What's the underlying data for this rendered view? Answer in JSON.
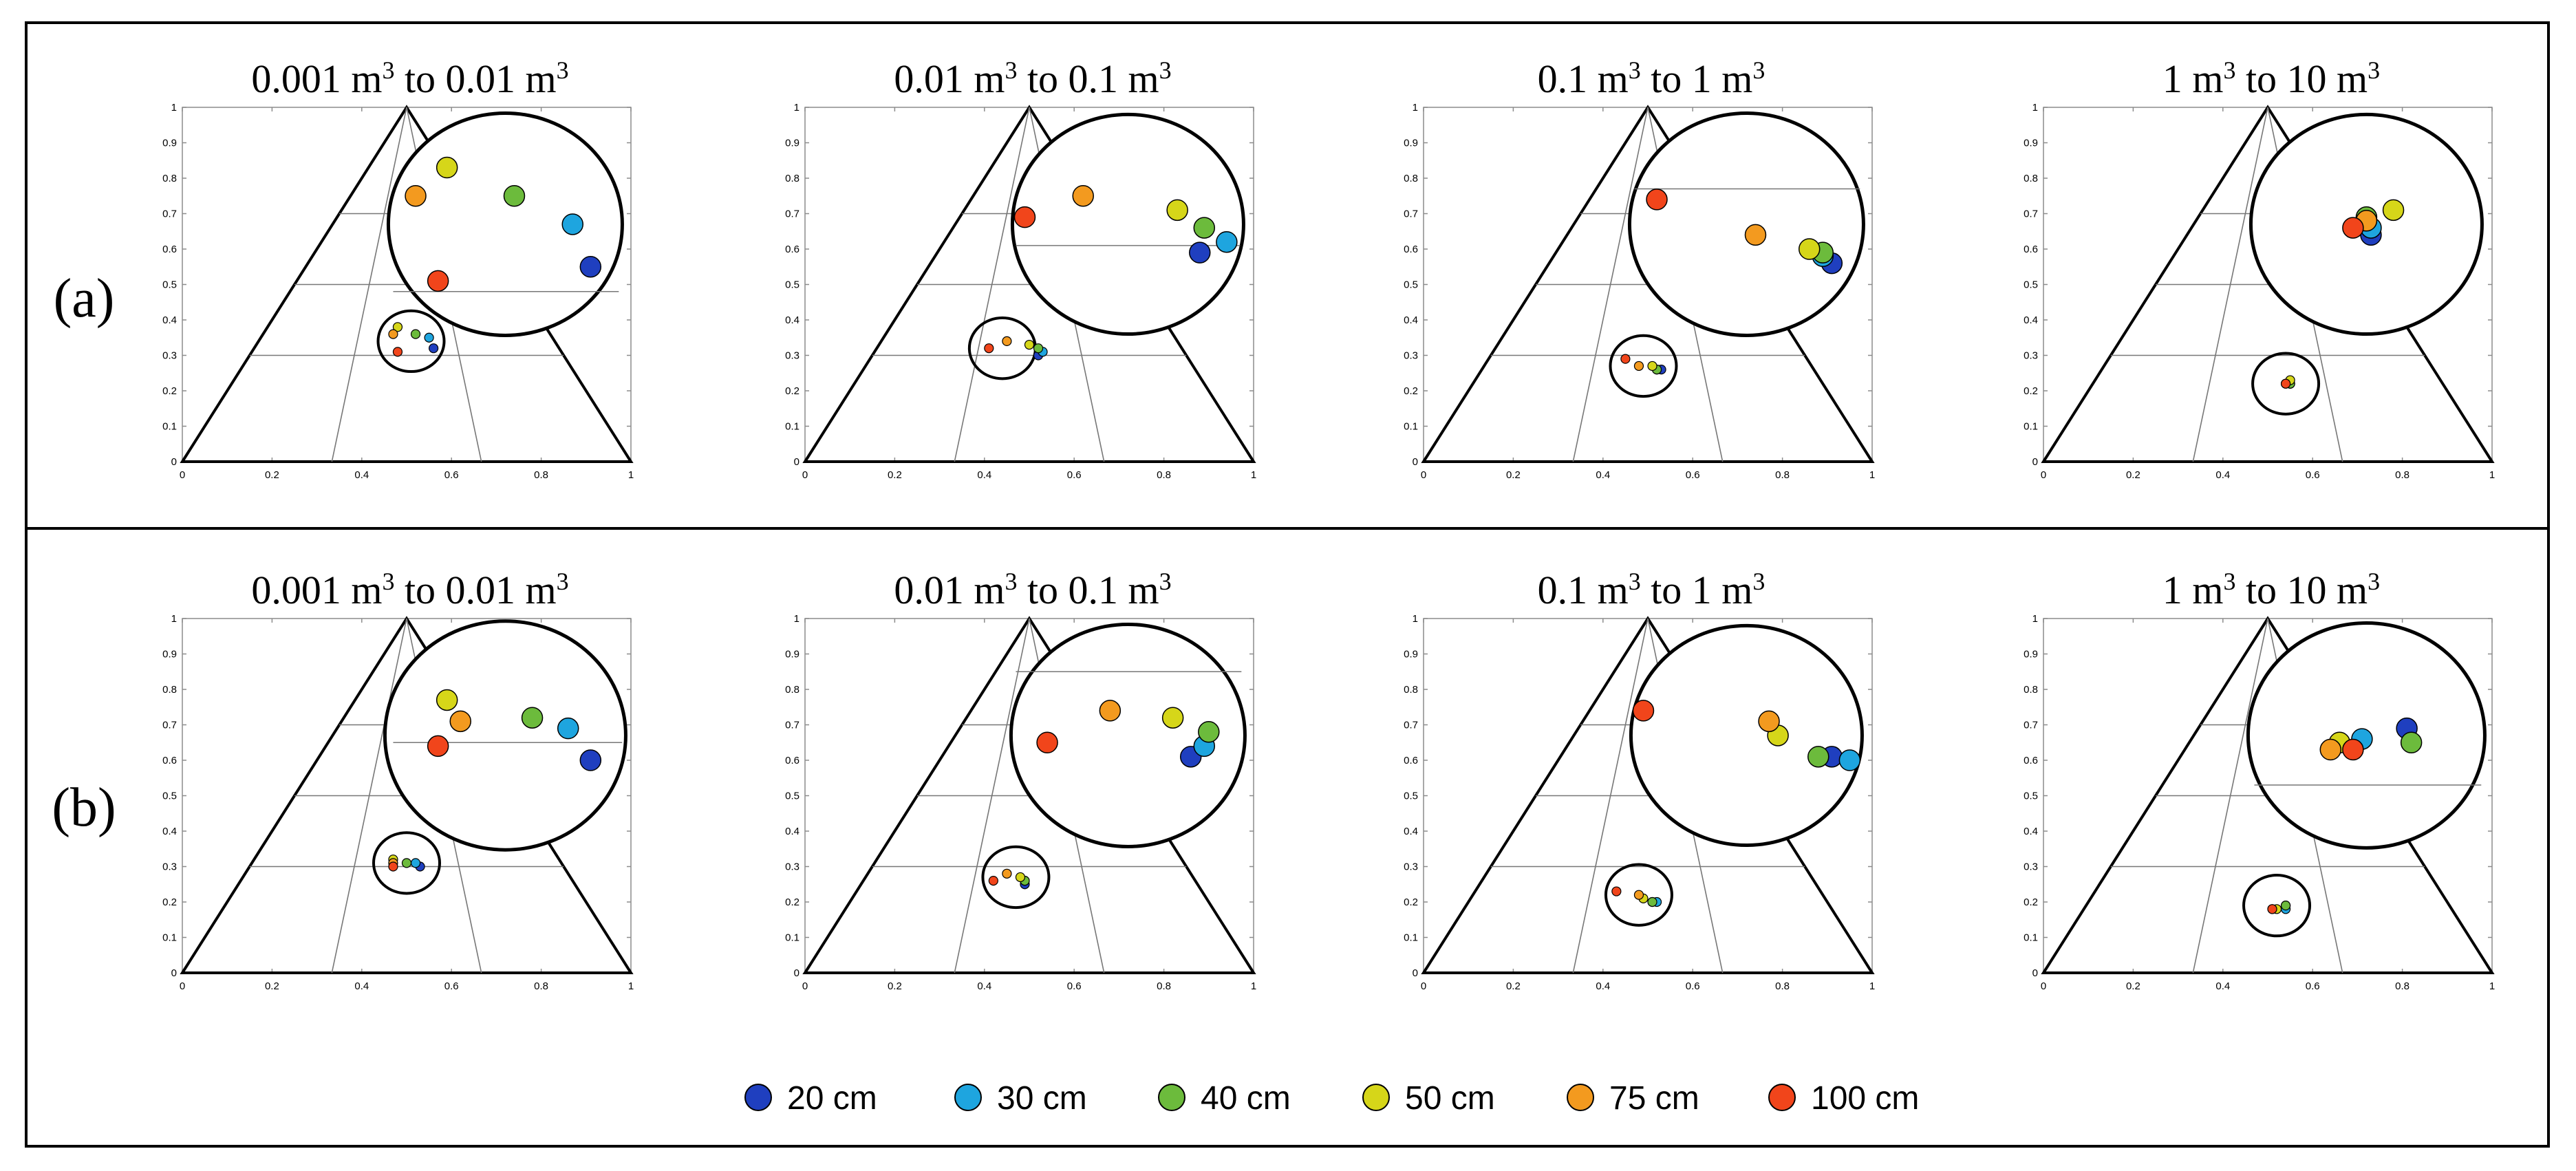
{
  "figure": {
    "rows": [
      {
        "label": "(a)"
      },
      {
        "label": "(b)"
      }
    ]
  },
  "colors": {
    "series": [
      "#1f3fbf",
      "#1ea5df",
      "#6cbb3c",
      "#d6d619",
      "#f39a1f",
      "#f1451b"
    ],
    "frame": "#000000",
    "axis": "#8c8c8c",
    "grid": "#777777"
  },
  "legend": {
    "items": [
      {
        "label": "20 cm",
        "color": "#1f3fbf"
      },
      {
        "label": "30 cm",
        "color": "#1ea5df"
      },
      {
        "label": "40 cm",
        "color": "#6cbb3c"
      },
      {
        "label": "50 cm",
        "color": "#d6d619"
      },
      {
        "label": "75 cm",
        "color": "#f39a1f"
      },
      {
        "label": "100 cm",
        "color": "#f1451b"
      }
    ]
  },
  "chart_data": [
    {
      "type": "scatter",
      "row": "(a)",
      "title": "0.001 m³ to 0.01 m³",
      "xlim": [
        0,
        1
      ],
      "ylim": [
        0,
        1
      ],
      "xticks": [
        "0",
        "0.2",
        "0.4",
        "0.6",
        "0.8",
        "1"
      ],
      "yticks": [
        "0",
        "0.1",
        "0.2",
        "0.3",
        "0.4",
        "0.5",
        "0.6",
        "0.7",
        "0.8",
        "0.9",
        "1"
      ],
      "magnifier": {
        "center_x": 0.51,
        "center_y": 0.34,
        "guide_y": 0.48
      },
      "series": [
        {
          "name": "20 cm",
          "points": [
            {
              "x": 0.56,
              "y": 0.32
            }
          ],
          "inset": [
            {
              "x": 0.91,
              "y": 0.55
            }
          ]
        },
        {
          "name": "30 cm",
          "points": [
            {
              "x": 0.55,
              "y": 0.35
            }
          ],
          "inset": [
            {
              "x": 0.87,
              "y": 0.67
            }
          ]
        },
        {
          "name": "40 cm",
          "points": [
            {
              "x": 0.52,
              "y": 0.36
            }
          ],
          "inset": [
            {
              "x": 0.74,
              "y": 0.75
            }
          ]
        },
        {
          "name": "50 cm",
          "points": [
            {
              "x": 0.48,
              "y": 0.38
            }
          ],
          "inset": [
            {
              "x": 0.59,
              "y": 0.83
            }
          ]
        },
        {
          "name": "75 cm",
          "points": [
            {
              "x": 0.47,
              "y": 0.36
            }
          ],
          "inset": [
            {
              "x": 0.52,
              "y": 0.75
            }
          ]
        },
        {
          "name": "100 cm",
          "points": [
            {
              "x": 0.48,
              "y": 0.31
            }
          ],
          "inset": [
            {
              "x": 0.57,
              "y": 0.51
            }
          ]
        }
      ]
    },
    {
      "type": "scatter",
      "row": "(a)",
      "title": "0.01 m³ to 0.1 m³",
      "xlim": [
        0,
        1
      ],
      "ylim": [
        0,
        1
      ],
      "xticks": [
        "0",
        "0.2",
        "0.4",
        "0.6",
        "0.8",
        "1"
      ],
      "yticks": [
        "0",
        "0.1",
        "0.2",
        "0.3",
        "0.4",
        "0.5",
        "0.6",
        "0.7",
        "0.8",
        "0.9",
        "1"
      ],
      "magnifier": {
        "center_x": 0.44,
        "center_y": 0.32,
        "guide_y": 0.61
      },
      "series": [
        {
          "name": "20 cm",
          "points": [
            {
              "x": 0.52,
              "y": 0.3
            }
          ],
          "inset": [
            {
              "x": 0.88,
              "y": 0.59
            }
          ]
        },
        {
          "name": "30 cm",
          "points": [
            {
              "x": 0.53,
              "y": 0.31
            }
          ],
          "inset": [
            {
              "x": 0.94,
              "y": 0.62
            }
          ]
        },
        {
          "name": "40 cm",
          "points": [
            {
              "x": 0.52,
              "y": 0.32
            }
          ],
          "inset": [
            {
              "x": 0.89,
              "y": 0.66
            }
          ]
        },
        {
          "name": "50 cm",
          "points": [
            {
              "x": 0.5,
              "y": 0.33
            }
          ],
          "inset": [
            {
              "x": 0.83,
              "y": 0.71
            }
          ]
        },
        {
          "name": "75 cm",
          "points": [
            {
              "x": 0.45,
              "y": 0.34
            }
          ],
          "inset": [
            {
              "x": 0.62,
              "y": 0.75
            }
          ]
        },
        {
          "name": "100 cm",
          "points": [
            {
              "x": 0.41,
              "y": 0.32
            }
          ],
          "inset": [
            {
              "x": 0.49,
              "y": 0.69
            }
          ]
        }
      ]
    },
    {
      "type": "scatter",
      "row": "(a)",
      "title": "0.1 m³ to 1 m³",
      "xlim": [
        0,
        1
      ],
      "ylim": [
        0,
        1
      ],
      "xticks": [
        "0",
        "0.2",
        "0.4",
        "0.6",
        "0.8",
        "1"
      ],
      "yticks": [
        "0",
        "0.1",
        "0.2",
        "0.3",
        "0.4",
        "0.5",
        "0.6",
        "0.7",
        "0.8",
        "0.9",
        "1"
      ],
      "magnifier": {
        "center_x": 0.49,
        "center_y": 0.27,
        "guide_y": 0.77
      },
      "series": [
        {
          "name": "20 cm",
          "points": [
            {
              "x": 0.53,
              "y": 0.26
            }
          ],
          "inset": [
            {
              "x": 0.91,
              "y": 0.56
            }
          ]
        },
        {
          "name": "30 cm",
          "points": [
            {
              "x": 0.52,
              "y": 0.26
            }
          ],
          "inset": [
            {
              "x": 0.89,
              "y": 0.58
            }
          ]
        },
        {
          "name": "40 cm",
          "points": [
            {
              "x": 0.52,
              "y": 0.26
            }
          ],
          "inset": [
            {
              "x": 0.89,
              "y": 0.59
            }
          ]
        },
        {
          "name": "50 cm",
          "points": [
            {
              "x": 0.51,
              "y": 0.27
            }
          ],
          "inset": [
            {
              "x": 0.86,
              "y": 0.6
            }
          ]
        },
        {
          "name": "75 cm",
          "points": [
            {
              "x": 0.48,
              "y": 0.27
            }
          ],
          "inset": [
            {
              "x": 0.74,
              "y": 0.64
            }
          ]
        },
        {
          "name": "100 cm",
          "points": [
            {
              "x": 0.45,
              "y": 0.29
            }
          ],
          "inset": [
            {
              "x": 0.52,
              "y": 0.74
            }
          ]
        }
      ]
    },
    {
      "type": "scatter",
      "row": "(a)",
      "title": "1 m³ to 10 m³",
      "xlim": [
        0,
        1
      ],
      "ylim": [
        0,
        1
      ],
      "xticks": [
        "0",
        "0.2",
        "0.4",
        "0.6",
        "0.8",
        "1"
      ],
      "yticks": [
        "0",
        "0.1",
        "0.2",
        "0.3",
        "0.4",
        "0.5",
        "0.6",
        "0.7",
        "0.8",
        "0.9",
        "1"
      ],
      "magnifier": {
        "center_x": 0.54,
        "center_y": 0.22,
        "guide_y": null
      },
      "series": [
        {
          "name": "20 cm",
          "points": [
            {
              "x": 0.55,
              "y": 0.22
            }
          ],
          "inset": [
            {
              "x": 0.73,
              "y": 0.64
            }
          ]
        },
        {
          "name": "30 cm",
          "points": [
            {
              "x": 0.55,
              "y": 0.22
            }
          ],
          "inset": [
            {
              "x": 0.73,
              "y": 0.66
            }
          ]
        },
        {
          "name": "40 cm",
          "points": [
            {
              "x": 0.55,
              "y": 0.22
            }
          ],
          "inset": [
            {
              "x": 0.72,
              "y": 0.69
            }
          ]
        },
        {
          "name": "50 cm",
          "points": [
            {
              "x": 0.55,
              "y": 0.23
            }
          ],
          "inset": [
            {
              "x": 0.78,
              "y": 0.71
            }
          ]
        },
        {
          "name": "75 cm",
          "points": [
            {
              "x": 0.54,
              "y": 0.22
            }
          ],
          "inset": [
            {
              "x": 0.72,
              "y": 0.68
            }
          ]
        },
        {
          "name": "100 cm",
          "points": [
            {
              "x": 0.54,
              "y": 0.22
            }
          ],
          "inset": [
            {
              "x": 0.69,
              "y": 0.66
            }
          ]
        }
      ]
    },
    {
      "type": "scatter",
      "row": "(b)",
      "title": "0.001 m³ to 0.01 m³",
      "xlim": [
        0,
        1
      ],
      "ylim": [
        0,
        1
      ],
      "xticks": [
        "0",
        "0.2",
        "0.4",
        "0.6",
        "0.8",
        "1"
      ],
      "yticks": [
        "0",
        "0.1",
        "0.2",
        "0.3",
        "0.4",
        "0.5",
        "0.6",
        "0.7",
        "0.8",
        "0.9",
        "1"
      ],
      "magnifier": {
        "center_x": 0.5,
        "center_y": 0.31,
        "guide_y": 0.65
      },
      "series": [
        {
          "name": "20 cm",
          "points": [
            {
              "x": 0.53,
              "y": 0.3
            }
          ],
          "inset": [
            {
              "x": 0.91,
              "y": 0.6
            }
          ]
        },
        {
          "name": "30 cm",
          "points": [
            {
              "x": 0.52,
              "y": 0.31
            }
          ],
          "inset": [
            {
              "x": 0.86,
              "y": 0.69
            }
          ]
        },
        {
          "name": "40 cm",
          "points": [
            {
              "x": 0.5,
              "y": 0.31
            }
          ],
          "inset": [
            {
              "x": 0.78,
              "y": 0.72
            }
          ]
        },
        {
          "name": "50 cm",
          "points": [
            {
              "x": 0.47,
              "y": 0.32
            }
          ],
          "inset": [
            {
              "x": 0.59,
              "y": 0.77
            }
          ]
        },
        {
          "name": "75 cm",
          "points": [
            {
              "x": 0.47,
              "y": 0.31
            }
          ],
          "inset": [
            {
              "x": 0.62,
              "y": 0.71
            }
          ]
        },
        {
          "name": "100 cm",
          "points": [
            {
              "x": 0.47,
              "y": 0.3
            }
          ],
          "inset": [
            {
              "x": 0.57,
              "y": 0.64
            }
          ]
        }
      ]
    },
    {
      "type": "scatter",
      "row": "(b)",
      "title": "0.01 m³ to 0.1 m³",
      "xlim": [
        0,
        1
      ],
      "ylim": [
        0,
        1
      ],
      "xticks": [
        "0",
        "0.2",
        "0.4",
        "0.6",
        "0.8",
        "1"
      ],
      "yticks": [
        "0",
        "0.1",
        "0.2",
        "0.3",
        "0.4",
        "0.5",
        "0.6",
        "0.7",
        "0.8",
        "0.9",
        "1"
      ],
      "magnifier": {
        "center_x": 0.47,
        "center_y": 0.27,
        "guide_y": 0.85
      },
      "series": [
        {
          "name": "20 cm",
          "points": [
            {
              "x": 0.49,
              "y": 0.25
            }
          ],
          "inset": [
            {
              "x": 0.86,
              "y": 0.61
            }
          ]
        },
        {
          "name": "30 cm",
          "points": [
            {
              "x": 0.49,
              "y": 0.26
            }
          ],
          "inset": [
            {
              "x": 0.89,
              "y": 0.64
            }
          ]
        },
        {
          "name": "40 cm",
          "points": [
            {
              "x": 0.49,
              "y": 0.26
            }
          ],
          "inset": [
            {
              "x": 0.9,
              "y": 0.68
            }
          ]
        },
        {
          "name": "50 cm",
          "points": [
            {
              "x": 0.48,
              "y": 0.27
            }
          ],
          "inset": [
            {
              "x": 0.82,
              "y": 0.72
            }
          ]
        },
        {
          "name": "75 cm",
          "points": [
            {
              "x": 0.45,
              "y": 0.28
            }
          ],
          "inset": [
            {
              "x": 0.68,
              "y": 0.74
            }
          ]
        },
        {
          "name": "100 cm",
          "points": [
            {
              "x": 0.42,
              "y": 0.26
            }
          ],
          "inset": [
            {
              "x": 0.54,
              "y": 0.65
            }
          ]
        }
      ]
    },
    {
      "type": "scatter",
      "row": "(b)",
      "title": "0.1 m³ to 1 m³",
      "xlim": [
        0,
        1
      ],
      "ylim": [
        0,
        1
      ],
      "xticks": [
        "0",
        "0.2",
        "0.4",
        "0.6",
        "0.8",
        "1"
      ],
      "yticks": [
        "0",
        "0.1",
        "0.2",
        "0.3",
        "0.4",
        "0.5",
        "0.6",
        "0.7",
        "0.8",
        "0.9",
        "1"
      ],
      "magnifier": {
        "center_x": 0.48,
        "center_y": 0.22,
        "guide_y": null
      },
      "series": [
        {
          "name": "20 cm",
          "points": [
            {
              "x": 0.51,
              "y": 0.2
            }
          ],
          "inset": [
            {
              "x": 0.91,
              "y": 0.61
            }
          ]
        },
        {
          "name": "30 cm",
          "points": [
            {
              "x": 0.52,
              "y": 0.2
            }
          ],
          "inset": [
            {
              "x": 0.95,
              "y": 0.6
            }
          ]
        },
        {
          "name": "40 cm",
          "points": [
            {
              "x": 0.51,
              "y": 0.2
            }
          ],
          "inset": [
            {
              "x": 0.88,
              "y": 0.61
            }
          ]
        },
        {
          "name": "50 cm",
          "points": [
            {
              "x": 0.49,
              "y": 0.21
            }
          ],
          "inset": [
            {
              "x": 0.79,
              "y": 0.67
            }
          ]
        },
        {
          "name": "75 cm",
          "points": [
            {
              "x": 0.48,
              "y": 0.22
            }
          ],
          "inset": [
            {
              "x": 0.77,
              "y": 0.71
            }
          ]
        },
        {
          "name": "100 cm",
          "points": [
            {
              "x": 0.43,
              "y": 0.23
            }
          ],
          "inset": [
            {
              "x": 0.49,
              "y": 0.74
            }
          ]
        }
      ]
    },
    {
      "type": "scatter",
      "row": "(b)",
      "title": "1 m³ to 10 m³",
      "xlim": [
        0,
        1
      ],
      "ylim": [
        0,
        1
      ],
      "xticks": [
        "0",
        "0.2",
        "0.4",
        "0.6",
        "0.8",
        "1"
      ],
      "yticks": [
        "0",
        "0.1",
        "0.2",
        "0.3",
        "0.4",
        "0.5",
        "0.6",
        "0.7",
        "0.8",
        "0.9",
        "1"
      ],
      "magnifier": {
        "center_x": 0.52,
        "center_y": 0.19,
        "guide_y": 0.53
      },
      "series": [
        {
          "name": "20 cm",
          "points": [
            {
              "x": 0.54,
              "y": 0.19
            }
          ],
          "inset": [
            {
              "x": 0.81,
              "y": 0.69
            }
          ]
        },
        {
          "name": "30 cm",
          "points": [
            {
              "x": 0.54,
              "y": 0.18
            }
          ],
          "inset": [
            {
              "x": 0.71,
              "y": 0.66
            }
          ]
        },
        {
          "name": "40 cm",
          "points": [
            {
              "x": 0.54,
              "y": 0.19
            }
          ],
          "inset": [
            {
              "x": 0.82,
              "y": 0.65
            }
          ]
        },
        {
          "name": "50 cm",
          "points": [
            {
              "x": 0.52,
              "y": 0.18
            }
          ],
          "inset": [
            {
              "x": 0.66,
              "y": 0.65
            }
          ]
        },
        {
          "name": "75 cm",
          "points": [
            {
              "x": 0.51,
              "y": 0.18
            }
          ],
          "inset": [
            {
              "x": 0.64,
              "y": 0.63
            }
          ]
        },
        {
          "name": "100 cm",
          "points": [
            {
              "x": 0.51,
              "y": 0.18
            }
          ],
          "inset": [
            {
              "x": 0.69,
              "y": 0.63
            }
          ]
        }
      ]
    }
  ]
}
